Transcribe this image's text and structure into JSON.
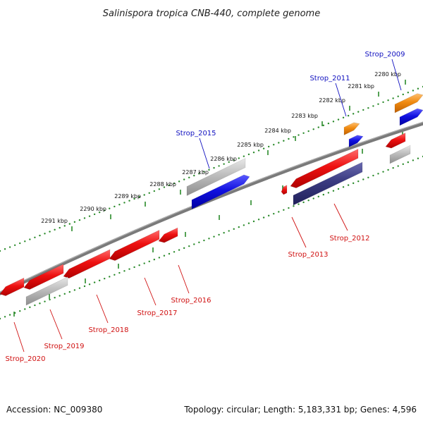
{
  "title": "Salinispora tropica CNB-440, complete genome",
  "footer": {
    "accession": "Accession: NC_009380",
    "stats": "Topology: circular; Length: 5,183,331 bp; Genes: 4,596"
  },
  "colors": {
    "background": "#ffffff",
    "backbone": "#7a7a7a",
    "tick_dots": "#2a8a2a",
    "cds_forward": "#ee1111",
    "cds_reverse": "#ee1111",
    "gene_blue": "#1010e0",
    "gene_orange": "#f08a10",
    "gene_gray": "#b8b8b8",
    "gene_navy": "#3a3a80",
    "label_blue": "#1010c0",
    "label_red": "#d01010"
  },
  "scale": {
    "ticks": [
      "2280 kbp",
      "2281 kbp",
      "2282 kbp",
      "2283 kbp",
      "2284 kbp",
      "2285 kbp",
      "2286 kbp",
      "2287 kbp",
      "2288 kbp",
      "2289 kbp",
      "2290 kbp",
      "2291 kbp"
    ]
  },
  "gene_labels": [
    {
      "id": "Strop_2009",
      "text": "Strop_2009",
      "color": "blue"
    },
    {
      "id": "Strop_2011",
      "text": "Strop_2011",
      "color": "blue"
    },
    {
      "id": "Strop_2015",
      "text": "Strop_2015",
      "color": "blue"
    },
    {
      "id": "Strop_2012",
      "text": "Strop_2012",
      "color": "red"
    },
    {
      "id": "Strop_2013",
      "text": "Strop_2013",
      "color": "red"
    },
    {
      "id": "Strop_2016",
      "text": "Strop_2016",
      "color": "red"
    },
    {
      "id": "Strop_2017",
      "text": "Strop_2017",
      "color": "red"
    },
    {
      "id": "Strop_2018",
      "text": "Strop_2018",
      "color": "red"
    },
    {
      "id": "Strop_2019",
      "text": "Strop_2019",
      "color": "red"
    },
    {
      "id": "Strop_2020",
      "text": "Strop_2020",
      "color": "red"
    }
  ]
}
